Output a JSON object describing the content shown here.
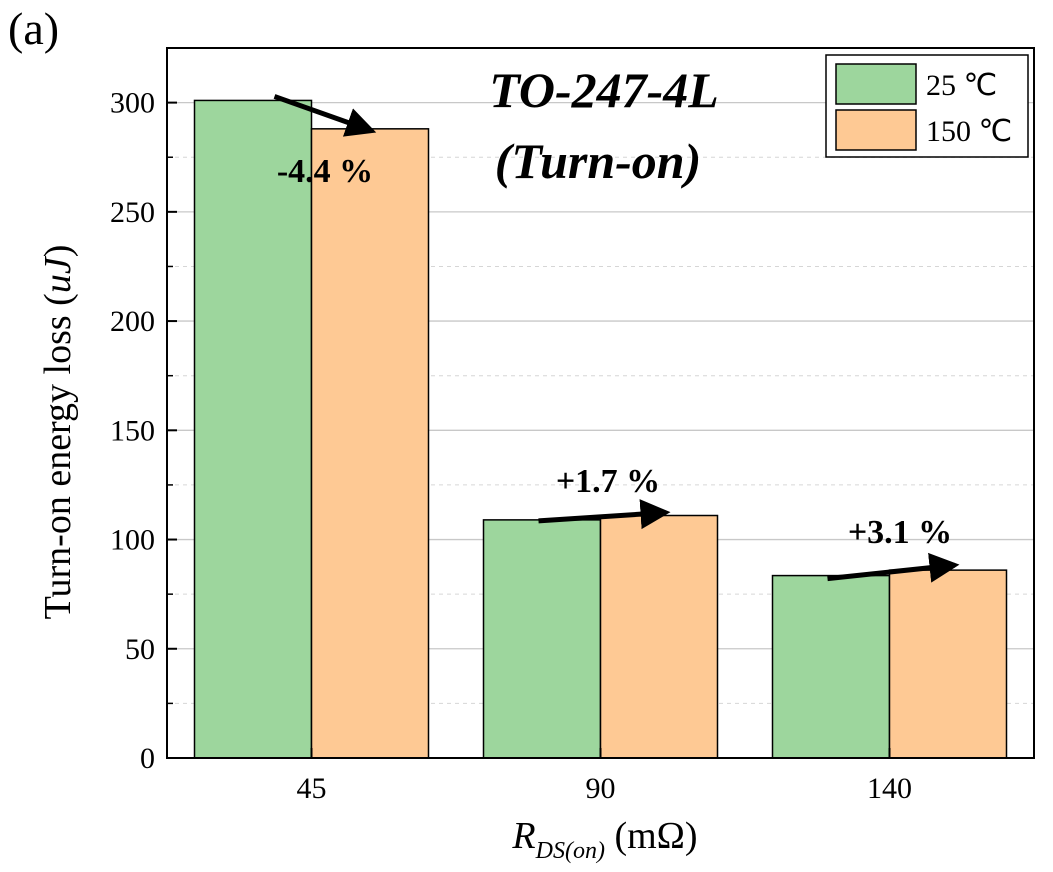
{
  "panel_label": "(a)",
  "chart_data": {
    "type": "bar",
    "title_lines": [
      "TO-247-4L",
      "(Turn-on)"
    ],
    "xlabel": {
      "main": "R",
      "sub": "DS(on)",
      "unit": " (mΩ)"
    },
    "ylabel": {
      "main": "Turn-on energy loss (",
      "unit": "uJ",
      "close": ")"
    },
    "categories": [
      "45",
      "90",
      "140"
    ],
    "series": [
      {
        "name": "25 ℃",
        "values": [
          301,
          109,
          83.5
        ],
        "color": "#9dd69d"
      },
      {
        "name": "150 ℃",
        "values": [
          288,
          111,
          86
        ],
        "color": "#fec994"
      }
    ],
    "ylim": [
      0,
      325
    ],
    "yticks": [
      0,
      50,
      100,
      150,
      200,
      250,
      300
    ],
    "grid": true,
    "legend_position": "top-right",
    "annotations": [
      "-4.4 %",
      "+1.7 %",
      "+3.1 %"
    ]
  }
}
